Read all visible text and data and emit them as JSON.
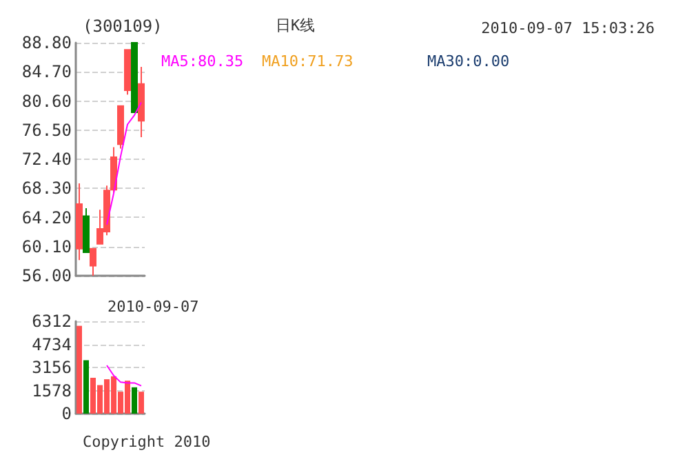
{
  "chart_data": [
    {
      "type": "candlestick",
      "title": "(300109)",
      "categories": [
        null,
        null,
        null,
        null,
        null,
        null,
        null,
        null,
        null,
        null
      ],
      "series": [
        {
          "ohlc": [
            [
              59.8,
              69.0,
              58.2,
              66.1
            ],
            [
              64.4,
              65.5,
              59.3,
              59.3
            ],
            [
              57.4,
              59.8,
              56.0,
              59.8
            ],
            [
              60.5,
              65.3,
              60.5,
              62.6
            ],
            [
              62.2,
              68.7,
              61.7,
              68.0
            ],
            [
              68.1,
              74.1,
              67.6,
              72.7
            ],
            [
              74.5,
              79.9,
              73.9,
              79.9
            ],
            [
              82.1,
              87.8,
              81.5,
              87.8
            ],
            [
              88.8,
              88.8,
              79.0,
              79.0
            ],
            [
              77.8,
              85.4,
              75.5,
              83.0
            ]
          ],
          "colors": [
            "#ff5050",
            "#008800",
            "#ff5050",
            "#ff5050",
            "#ff5050",
            "#ff5050",
            "#ff5050",
            "#ff5050",
            "#008800",
            "#ff5050"
          ]
        },
        {
          "type": "line",
          "name": "MA5:80.35",
          "color": "#ff00ff",
          "values": [
            null,
            null,
            null,
            null,
            63.2,
            67.6,
            72.8,
            77.3,
            78.6,
            80.4
          ]
        }
      ],
      "ylim": [
        56,
        88.8
      ],
      "yticks": [
        {
          "value": 56,
          "label": "56.00"
        },
        {
          "value": 60.1,
          "label": "60.10"
        },
        {
          "value": 64.2,
          "label": "64.20"
        },
        {
          "value": 68.3,
          "label": "68.30"
        },
        {
          "value": 72.4,
          "label": "72.40"
        },
        {
          "value": 76.5,
          "label": "76.50"
        },
        {
          "value": 80.6,
          "label": "80.60"
        },
        {
          "value": 84.7,
          "label": "84.70"
        },
        {
          "value": 88.8,
          "label": "88.80"
        }
      ],
      "grid": "y",
      "annotations": [
        "日K线",
        "MA10:71.73",
        "MA30:0.00",
        "2010-09-07 15:03:26"
      ]
    },
    {
      "type": "bar",
      "categories": [
        null,
        null,
        null,
        null,
        null,
        null,
        null,
        null,
        null,
        null
      ],
      "series": [
        {
          "values": [
            6000,
            3650,
            2450,
            1950,
            2350,
            2550,
            1500,
            2250,
            1800,
            1500
          ],
          "colors": [
            "#ff5050",
            "#008800",
            "#ff5050",
            "#ff5050",
            "#ff5050",
            "#ff5050",
            "#ff5050",
            "#ff5050",
            "#008800",
            "#ff5050"
          ]
        },
        {
          "type": "line",
          "color": "#ff00ff",
          "values": [
            null,
            null,
            null,
            null,
            3300,
            2600,
            2150,
            2100,
            2100,
            1900
          ]
        }
      ],
      "ylim": [
        0,
        6312
      ],
      "yticks": [
        0,
        1578,
        3156,
        4734,
        6312
      ],
      "grid": "y",
      "annotations": [
        "2010-09-07",
        "Copyright 2010"
      ]
    }
  ]
}
